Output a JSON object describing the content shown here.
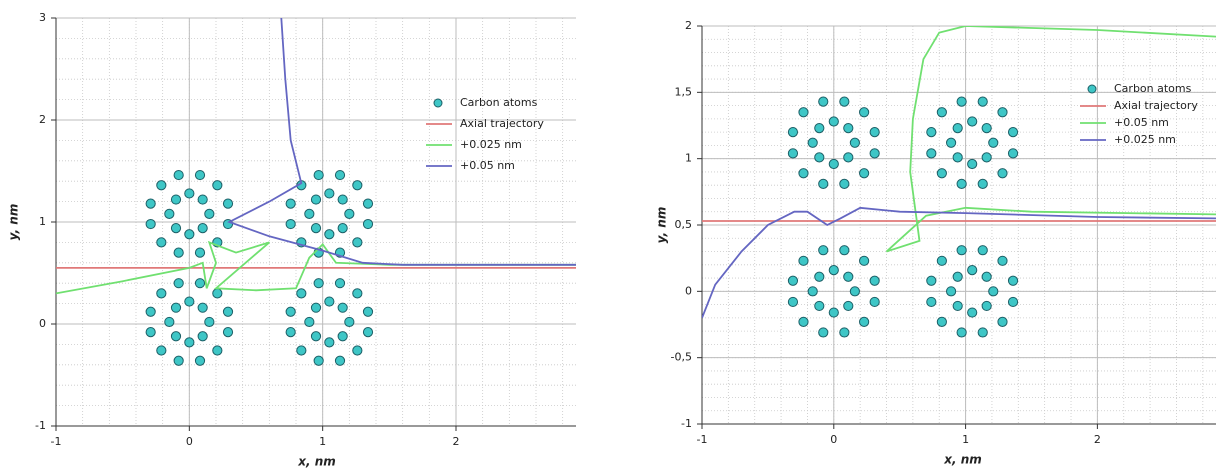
{
  "chart_data": [
    {
      "type": "scatter",
      "xlabel": "x, nm",
      "ylabel": "y, nm",
      "xlim": [
        -1,
        2.9
      ],
      "ylim": [
        -1,
        3
      ],
      "xticks": [
        -1,
        0,
        1,
        2
      ],
      "yticks": [
        -1,
        0,
        1,
        2,
        3
      ],
      "grid": true,
      "minor_grid": true,
      "legend": "upper right",
      "series": [
        {
          "name": "Carbon atoms",
          "color": "#3ec6c6",
          "mode": "markers",
          "x": [
            0.15,
            0.1,
            0,
            -0.1,
            -0.15,
            -0.1,
            0,
            0.1,
            0.29,
            0.21,
            0.08,
            -0.08,
            -0.21,
            -0.29,
            -0.29,
            -0.21,
            -0.08,
            0.08,
            0.21,
            0.29,
            1.2,
            1.15,
            1.05,
            0.95,
            0.9,
            0.95,
            1.05,
            1.15,
            1.34,
            1.26,
            1.13,
            0.97,
            0.84,
            0.76,
            0.76,
            0.84,
            0.97,
            1.13,
            1.26,
            1.34,
            0.15,
            0.1,
            0,
            -0.1,
            -0.15,
            -0.1,
            0,
            0.1,
            0.29,
            0.21,
            0.08,
            -0.08,
            -0.21,
            -0.29,
            -0.29,
            -0.21,
            -0.08,
            0.08,
            0.21,
            0.29,
            1.2,
            1.15,
            1.05,
            0.95,
            0.9,
            0.95,
            1.05,
            1.15,
            1.34,
            1.26,
            1.13,
            0.97,
            0.84,
            0.76,
            0.76,
            0.84,
            0.97,
            1.13,
            1.26,
            1.34
          ],
          "y": [
            1.08,
            1.22,
            1.28,
            1.22,
            1.08,
            0.94,
            0.88,
            0.94,
            1.18,
            1.36,
            1.46,
            1.46,
            1.36,
            1.18,
            0.98,
            0.8,
            0.7,
            0.7,
            0.8,
            0.98,
            1.08,
            1.22,
            1.28,
            1.22,
            1.08,
            0.94,
            0.88,
            0.94,
            1.18,
            1.36,
            1.46,
            1.46,
            1.36,
            1.18,
            0.98,
            0.8,
            0.7,
            0.7,
            0.8,
            0.98,
            0.02,
            0.16,
            0.22,
            0.16,
            0.02,
            -0.12,
            -0.18,
            -0.12,
            0.12,
            0.3,
            0.4,
            0.4,
            0.3,
            0.12,
            -0.08,
            -0.26,
            -0.36,
            -0.36,
            -0.26,
            -0.08,
            0.02,
            0.16,
            0.22,
            0.16,
            0.02,
            -0.12,
            -0.18,
            -0.12,
            0.12,
            0.3,
            0.4,
            0.4,
            0.3,
            0.12,
            -0.08,
            -0.26,
            -0.36,
            -0.36,
            -0.26,
            -0.08
          ]
        },
        {
          "name": "Axial trajectory",
          "color": "#e07878",
          "mode": "lines",
          "x": [
            -1,
            2.9
          ],
          "y": [
            0.55,
            0.55
          ]
        },
        {
          "name": "+0.025 nm",
          "color": "#70e070",
          "mode": "lines",
          "x": [
            -1,
            -0.5,
            0,
            0.1,
            0.13,
            0.2,
            0.15,
            0.35,
            0.6,
            0.2,
            0.5,
            0.8,
            0.9,
            1,
            1.1,
            1.5,
            2.9
          ],
          "y": [
            0.3,
            0.42,
            0.55,
            0.6,
            0.35,
            0.6,
            0.8,
            0.7,
            0.8,
            0.35,
            0.33,
            0.35,
            0.65,
            0.78,
            0.6,
            0.58,
            0.58
          ]
        },
        {
          "name": "+0.05 nm",
          "color": "#6466c2",
          "mode": "lines",
          "x": [
            0.69,
            0.72,
            0.76,
            0.84,
            0.6,
            0.3,
            0.6,
            1,
            1.3,
            1.6,
            2.9
          ],
          "y": [
            3,
            2.4,
            1.8,
            1.38,
            1.2,
            1,
            0.86,
            0.72,
            0.6,
            0.58,
            0.58
          ]
        }
      ]
    },
    {
      "type": "scatter",
      "xlabel": "x, nm",
      "ylabel": "y, nm",
      "xlim": [
        -1,
        2.9
      ],
      "ylim": [
        -1,
        2
      ],
      "xticks": [
        -1,
        0,
        1,
        2
      ],
      "yticks": [
        -1,
        {
          "value": -0.5,
          "label": "-0,5"
        },
        0,
        {
          "value": 0.5,
          "label": "0,5"
        },
        1,
        {
          "value": 1.5,
          "label": "1,5"
        },
        2
      ],
      "grid": true,
      "minor_grid": true,
      "legend": "upper right",
      "series": [
        {
          "name": "Carbon atoms",
          "color": "#3ec6c6",
          "mode": "markers",
          "x": [
            0.16,
            0.11,
            0,
            -0.11,
            -0.16,
            -0.11,
            0,
            0.11,
            0.31,
            0.23,
            0.08,
            -0.08,
            -0.23,
            -0.31,
            -0.31,
            -0.23,
            -0.08,
            0.08,
            0.23,
            0.31,
            1.21,
            1.16,
            1.05,
            0.94,
            0.89,
            0.94,
            1.05,
            1.16,
            1.36,
            1.28,
            1.13,
            0.97,
            0.82,
            0.74,
            0.74,
            0.82,
            0.97,
            1.13,
            1.28,
            1.36,
            0.16,
            0.11,
            0,
            -0.11,
            -0.16,
            -0.11,
            0,
            0.11,
            0.31,
            0.23,
            0.08,
            -0.08,
            -0.23,
            -0.31,
            -0.31,
            -0.23,
            -0.08,
            0.08,
            0.23,
            0.31,
            1.21,
            1.16,
            1.05,
            0.94,
            0.89,
            0.94,
            1.05,
            1.16,
            1.36,
            1.28,
            1.13,
            0.97,
            0.82,
            0.74,
            0.74,
            0.82,
            0.97,
            1.13,
            1.28,
            1.36
          ],
          "y": [
            1.12,
            1.23,
            1.28,
            1.23,
            1.12,
            1.01,
            0.96,
            1.01,
            1.2,
            1.35,
            1.43,
            1.43,
            1.35,
            1.2,
            1.04,
            0.89,
            0.81,
            0.81,
            0.89,
            1.04,
            1.12,
            1.23,
            1.28,
            1.23,
            1.12,
            1.01,
            0.96,
            1.01,
            1.2,
            1.35,
            1.43,
            1.43,
            1.35,
            1.2,
            1.04,
            0.89,
            0.81,
            0.81,
            0.89,
            1.04,
            0,
            0.11,
            0.16,
            0.11,
            0,
            -0.11,
            -0.16,
            -0.11,
            0.08,
            0.23,
            0.31,
            0.31,
            0.23,
            0.08,
            -0.08,
            -0.23,
            -0.31,
            -0.31,
            -0.23,
            -0.08,
            0,
            0.11,
            0.16,
            0.11,
            0,
            -0.11,
            -0.16,
            -0.11,
            0.08,
            0.23,
            0.31,
            0.31,
            0.23,
            0.08,
            -0.08,
            -0.23,
            -0.31,
            -0.31,
            -0.23,
            -0.08
          ]
        },
        {
          "name": "Axial trajectory",
          "color": "#e07878",
          "mode": "lines",
          "x": [
            -1,
            2.9
          ],
          "y": [
            0.53,
            0.53
          ]
        },
        {
          "name": "+0.05 nm",
          "color": "#70e070",
          "mode": "lines",
          "x": [
            2.9,
            1.5,
            1,
            0.7,
            0.4,
            0.65,
            0.58,
            0.6,
            0.68,
            0.8,
            1,
            2,
            2.9
          ],
          "y": [
            0.58,
            0.6,
            0.63,
            0.57,
            0.3,
            0.38,
            0.9,
            1.3,
            1.75,
            1.95,
            2,
            1.97,
            1.92
          ]
        },
        {
          "name": "+0.025 nm",
          "color": "#6466c2",
          "mode": "lines",
          "x": [
            -1,
            -0.9,
            -0.7,
            -0.5,
            -0.3,
            -0.2,
            -0.05,
            0.05,
            0.2,
            0.5,
            1,
            2,
            2.9
          ],
          "y": [
            -0.2,
            0.05,
            0.3,
            0.5,
            0.6,
            0.6,
            0.5,
            0.55,
            0.63,
            0.6,
            0.59,
            0.56,
            0.55
          ]
        }
      ]
    }
  ]
}
